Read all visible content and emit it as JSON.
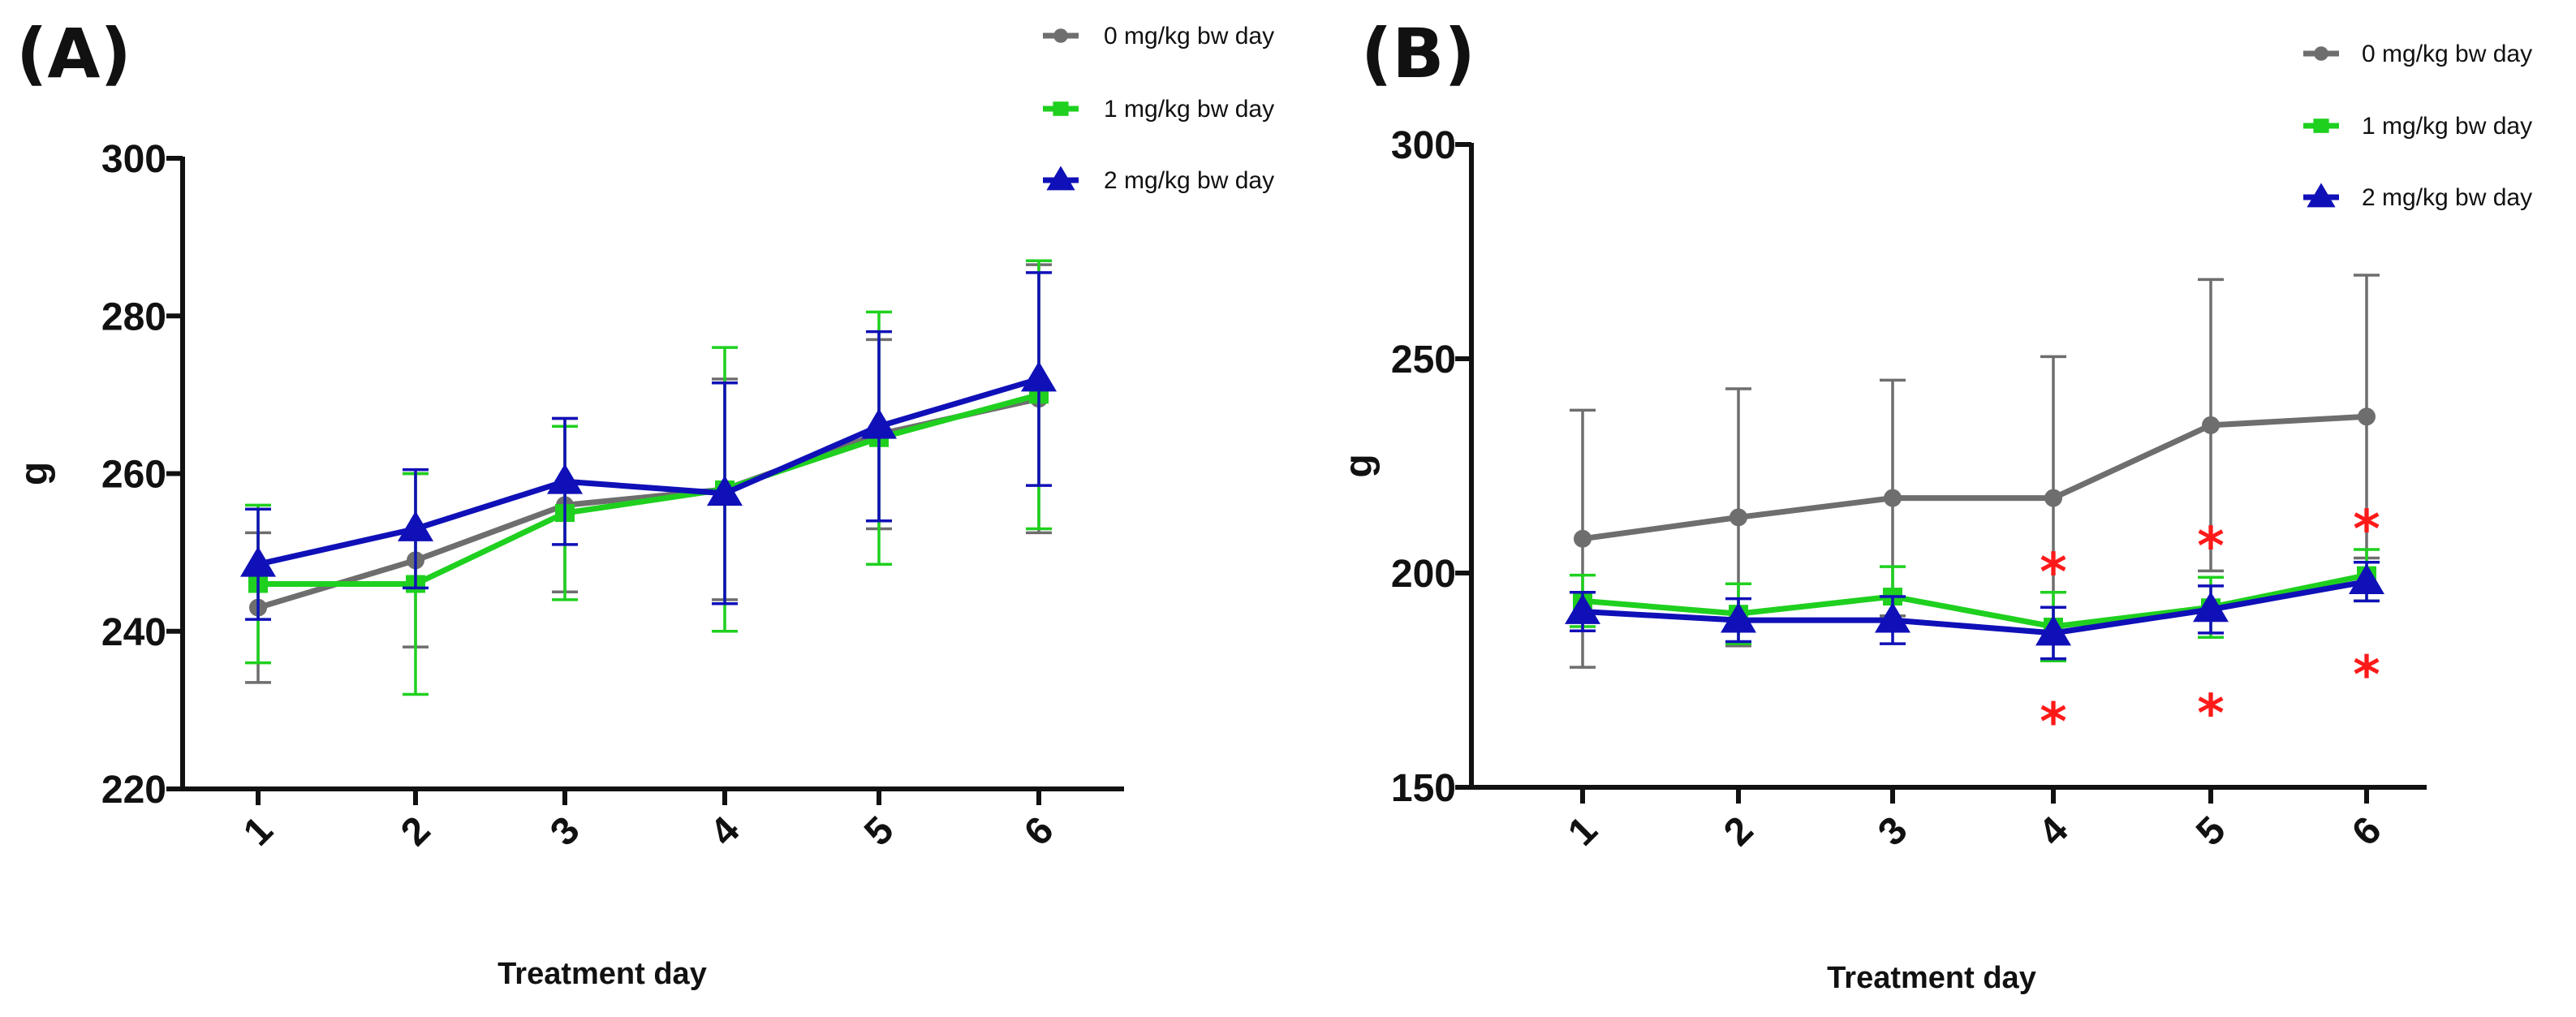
{
  "colors": {
    "control": "#6e6e6e",
    "low": "#1fd01f",
    "high": "#1010b8",
    "significance": "#ff1a1a"
  },
  "chart_data": [
    {
      "type": "line",
      "panel_label": "(A)",
      "xlabel": "Treatment day",
      "ylabel": "g",
      "categories": [
        "1",
        "2",
        "3",
        "4",
        "5",
        "6"
      ],
      "ylim": [
        220,
        300
      ],
      "yticks": [
        "220",
        "240",
        "260",
        "280",
        "300"
      ],
      "series": [
        {
          "name": "0 mg/kg bw day",
          "marker": "circle",
          "color": "#6e6e6e",
          "values": [
            243,
            249,
            256,
            258,
            265,
            269.5
          ],
          "errors": [
            9.5,
            11,
            11,
            14,
            12,
            17
          ]
        },
        {
          "name": "1 mg/kg bw day",
          "marker": "square",
          "color": "#1fd01f",
          "values": [
            246,
            246,
            255,
            258,
            264.5,
            270
          ],
          "errors": [
            10,
            14,
            11,
            18,
            16,
            17
          ]
        },
        {
          "name": "2 mg/kg bw day",
          "marker": "triangle",
          "color": "#1010b8",
          "values": [
            248.5,
            253,
            259,
            257.5,
            266,
            272
          ],
          "errors": [
            7,
            7.5,
            8,
            14,
            12,
            13.5
          ]
        }
      ],
      "significance_marks": []
    },
    {
      "type": "line",
      "panel_label": "(B)",
      "xlabel": "Treatment day",
      "ylabel": "g",
      "categories": [
        "1",
        "2",
        "3",
        "4",
        "5",
        "6"
      ],
      "ylim": [
        150,
        300
      ],
      "yticks": [
        "150",
        "200",
        "250",
        "300"
      ],
      "series": [
        {
          "name": "0 mg/kg bw day",
          "marker": "circle",
          "color": "#6e6e6e",
          "values": [
            208,
            213,
            217.5,
            217.5,
            234.5,
            236.5
          ],
          "errors": [
            30,
            30,
            27.5,
            33,
            34,
            33
          ]
        },
        {
          "name": "1 mg/kg bw day",
          "marker": "square",
          "color": "#1fd01f",
          "values": [
            193.5,
            190.5,
            194.5,
            187.5,
            192,
            199.5
          ],
          "errors": [
            6,
            7,
            7,
            8,
            7,
            6
          ]
        },
        {
          "name": "2 mg/kg bw day",
          "marker": "triangle",
          "color": "#1010b8",
          "values": [
            191,
            189,
            189,
            186,
            191.5,
            198
          ],
          "errors": [
            4.5,
            5,
            5.5,
            6,
            5.5,
            4.5
          ]
        }
      ],
      "significance_marks": [
        {
          "day": "4",
          "text": "*",
          "y": 204
        },
        {
          "day": "4",
          "text": "*",
          "y": 169
        },
        {
          "day": "5",
          "text": "*",
          "y": 210
        },
        {
          "day": "5",
          "text": "*",
          "y": 171
        },
        {
          "day": "6",
          "text": "*",
          "y": 214
        },
        {
          "day": "6",
          "text": "*",
          "y": 180
        }
      ]
    }
  ]
}
